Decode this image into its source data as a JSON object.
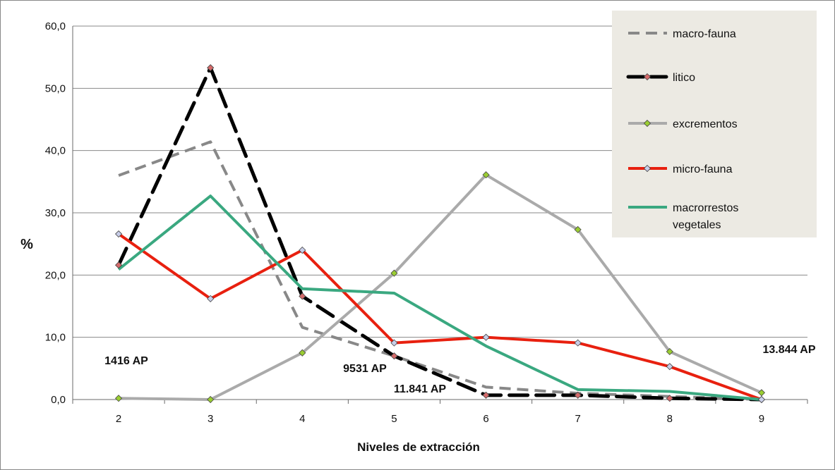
{
  "chart_data": {
    "type": "line",
    "title": "",
    "xlabel": "Niveles de extracción",
    "ylabel": "%",
    "categories": [
      "2",
      "3",
      "4",
      "5",
      "6",
      "7",
      "8",
      "9"
    ],
    "ylim": [
      0,
      60
    ],
    "yticks": [
      "0,0",
      "10,0",
      "20,0",
      "30,0",
      "40,0",
      "50,0",
      "60,0"
    ],
    "grid": true,
    "legend_position": "top-right",
    "series": [
      {
        "name": "macro-fauna",
        "color": "#888888",
        "dash": "dashed",
        "marker": "none",
        "values": [
          36.0,
          41.4,
          11.6,
          7.0,
          2.0,
          1.0,
          0.5,
          0.0
        ]
      },
      {
        "name": "litico",
        "color": "#000000",
        "dash": "dashed",
        "marker": "diamond",
        "marker_color": "#d46a6a",
        "values": [
          21.6,
          53.3,
          16.6,
          7.0,
          0.7,
          0.7,
          0.2,
          0.0
        ]
      },
      {
        "name": "excrementos",
        "color": "#aaaaaa",
        "dash": "solid",
        "marker": "diamond",
        "marker_color": "#9acd32",
        "values": [
          0.2,
          0.0,
          7.5,
          20.3,
          36.1,
          27.3,
          7.7,
          1.1
        ]
      },
      {
        "name": "micro-fauna",
        "color": "#e8200f",
        "dash": "solid",
        "marker": "diamond",
        "marker_color": "#c8cde8",
        "values": [
          26.6,
          16.2,
          24.0,
          9.1,
          10.0,
          9.1,
          5.3,
          0.0
        ]
      },
      {
        "name": "macrorrestos vegetales",
        "color": "#3aa880",
        "dash": "solid",
        "marker": "none",
        "values": [
          20.9,
          32.7,
          17.8,
          17.1,
          8.6,
          1.6,
          1.3,
          0.0
        ]
      }
    ],
    "annotations": [
      {
        "text": "1416 AP",
        "near": "2"
      },
      {
        "text": "9531 AP",
        "near": "5"
      },
      {
        "text": "11.841 AP",
        "near": "6"
      },
      {
        "text": "13.844 AP",
        "near": "9"
      }
    ],
    "legend_labels": [
      [
        "macro-fauna"
      ],
      [
        "litico"
      ],
      [
        "excrementos"
      ],
      [
        "micro-fauna"
      ],
      [
        "macrorrestos",
        "vegetales"
      ]
    ],
    "legend_bg": "#eceae3"
  }
}
